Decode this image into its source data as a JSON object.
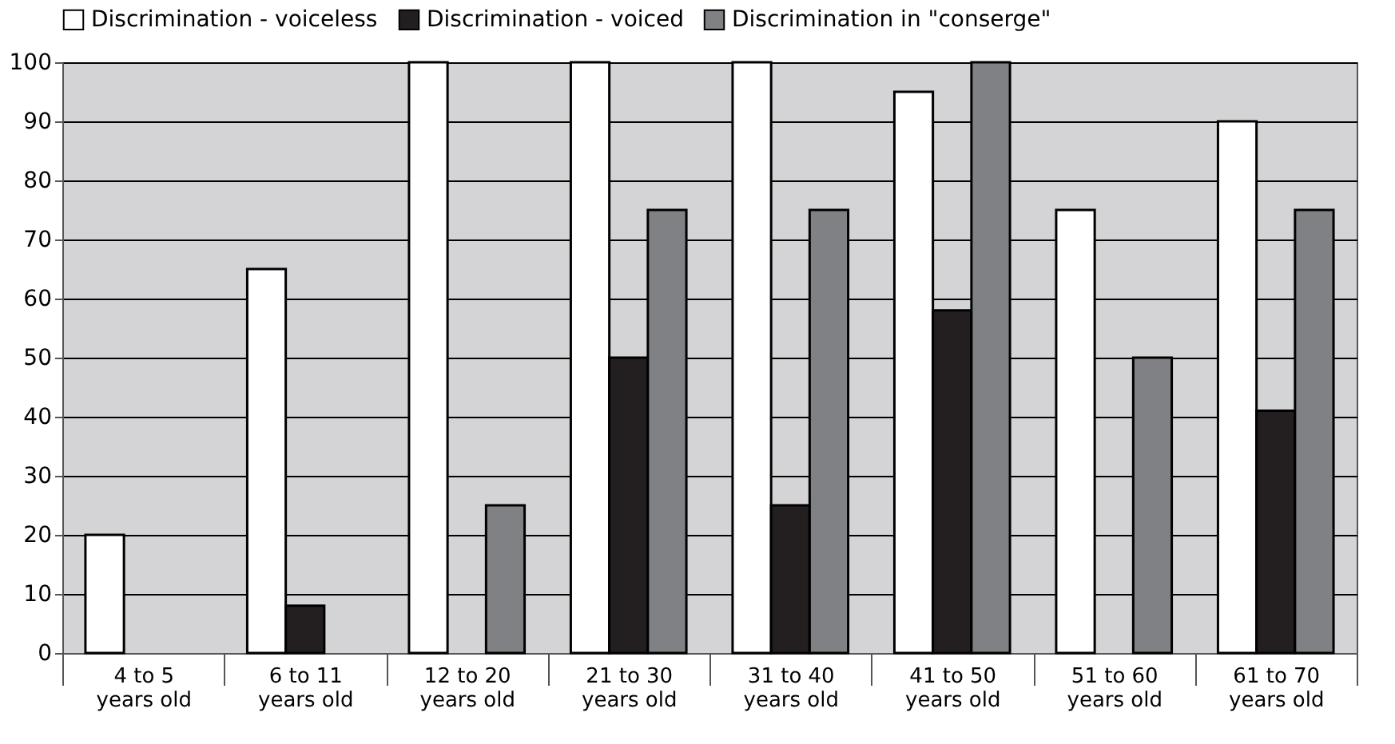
{
  "chart_data": {
    "type": "bar",
    "categories": [
      "4 to 5 years old",
      "6 to 11 years old",
      "12 to 20 years old",
      "21 to 30 years old",
      "31 to 40 years old",
      "41 to 50 years old",
      "51 to 60 years old",
      "61 to 70 years old"
    ],
    "series": [
      {
        "name": "Discrimination - voiceless",
        "color": "#ffffff",
        "values": [
          20,
          65,
          100,
          100,
          100,
          95,
          75,
          90
        ]
      },
      {
        "name": "Discrimination - voiced",
        "color": "#231f20",
        "values": [
          null,
          8,
          null,
          50,
          25,
          58,
          null,
          41
        ]
      },
      {
        "name": "Discrimination in \"conserge\"",
        "color": "#808184",
        "values": [
          null,
          null,
          25,
          75,
          75,
          100,
          50,
          75
        ]
      }
    ],
    "ylim": [
      0,
      100
    ],
    "yticks": [
      0,
      10,
      20,
      30,
      40,
      50,
      60,
      70,
      80,
      90,
      100
    ],
    "grid": "y",
    "legend": "top"
  }
}
